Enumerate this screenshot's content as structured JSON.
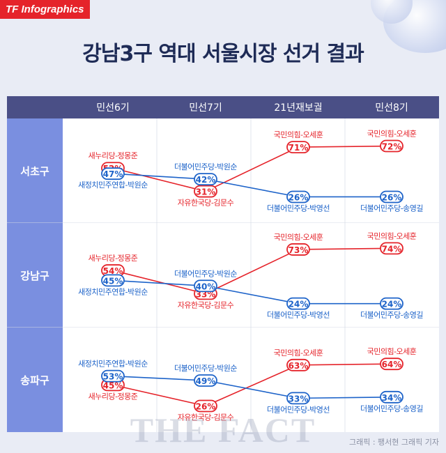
{
  "brand": "TF Infographics",
  "title": "강남3구 역대 서울시장 선거 결과",
  "watermark": "THE FACT",
  "credit": "그래픽 : 팽서현 그래픽 기자",
  "colors": {
    "red": "#e5232a",
    "blue": "#1d63c9",
    "header": "#4a4f86",
    "rowlabel": "#7a8fe0"
  },
  "chart_data": {
    "type": "line",
    "categories": [
      "민선6기",
      "민선7기",
      "21년재보궐",
      "민선8기"
    ],
    "ylabel": "",
    "rows": [
      {
        "district": "서초구",
        "series": [
          {
            "color": "red",
            "values": [
              52,
              31,
              71,
              72
            ],
            "labels": [
              "새누리당-정몽준",
              "자유한국당-김문수",
              "국민의힘-오세훈",
              "국민의힘-오세훈"
            ]
          },
          {
            "color": "blue",
            "values": [
              47,
              42,
              26,
              26
            ],
            "labels": [
              "새정치민주연합-박원순",
              "더불어민주당-박원순",
              "더불어민주당-박영선",
              "더불어민주당-송영길"
            ]
          }
        ]
      },
      {
        "district": "강남구",
        "series": [
          {
            "color": "red",
            "values": [
              54,
              33,
              73,
              74
            ],
            "labels": [
              "새누리당-정몽준",
              "자유한국당-김문수",
              "국민의힘-오세훈",
              "국민의힘-오세훈"
            ]
          },
          {
            "color": "blue",
            "values": [
              45,
              40,
              24,
              24
            ],
            "labels": [
              "새정치민주연합-박원순",
              "더불어민주당-박원순",
              "더불어민주당-박영선",
              "더불어민주당-송영길"
            ]
          }
        ]
      },
      {
        "district": "송파구",
        "series": [
          {
            "color": "red",
            "values": [
              45,
              26,
              63,
              64
            ],
            "labels": [
              "새누리당-정몽준",
              "자유한국당-김문수",
              "국민의힘-오세훈",
              "국민의힘-오세훈"
            ]
          },
          {
            "color": "blue",
            "values": [
              53,
              49,
              33,
              34
            ],
            "labels": [
              "새정치민주연합-박원순",
              "더불어민주당-박원순",
              "더불어민주당-박영선",
              "더불어민주당-송영길"
            ]
          }
        ]
      }
    ]
  }
}
